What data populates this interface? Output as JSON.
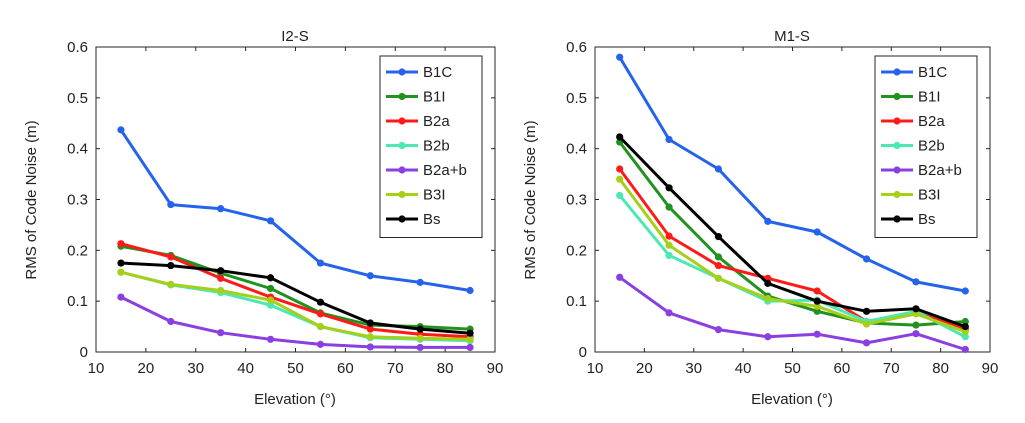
{
  "chart_data": [
    {
      "type": "line",
      "title": "I2-S",
      "xlabel": "Elevation (°)",
      "ylabel": "RMS of Code Noise (m)",
      "xlim": [
        10,
        90
      ],
      "ylim": [
        0,
        0.6
      ],
      "xticks": [
        10,
        20,
        30,
        40,
        50,
        60,
        70,
        80,
        90
      ],
      "yticks": [
        0,
        0.1,
        0.2,
        0.3,
        0.4,
        0.5,
        0.6
      ],
      "legend_position": "top-right",
      "x": [
        15,
        25,
        35,
        45,
        55,
        65,
        75,
        85
      ],
      "series": [
        {
          "name": "B1C",
          "color": "#2563eb",
          "values": [
            0.437,
            0.29,
            0.282,
            0.258,
            0.175,
            0.15,
            0.137,
            0.121
          ]
        },
        {
          "name": "B1I",
          "color": "#22921f",
          "values": [
            0.208,
            0.19,
            0.155,
            0.125,
            0.077,
            0.053,
            0.05,
            0.045
          ]
        },
        {
          "name": "B2a",
          "color": "#ff1a1a",
          "values": [
            0.213,
            0.187,
            0.145,
            0.108,
            0.075,
            0.045,
            0.035,
            0.03
          ]
        },
        {
          "name": "B2b",
          "color": "#4be8b3",
          "values": [
            0.157,
            0.132,
            0.117,
            0.092,
            0.05,
            0.028,
            0.025,
            0.022
          ]
        },
        {
          "name": "B2a+b",
          "color": "#8b3fe0",
          "values": [
            0.108,
            0.06,
            0.038,
            0.025,
            0.015,
            0.01,
            0.009,
            0.009
          ]
        },
        {
          "name": "B3I",
          "color": "#a6cf1a",
          "values": [
            0.157,
            0.133,
            0.121,
            0.102,
            0.05,
            0.03,
            0.027,
            0.025
          ]
        },
        {
          "name": "Bs",
          "color": "#000000",
          "values": [
            0.175,
            0.17,
            0.16,
            0.146,
            0.098,
            0.057,
            0.045,
            0.037
          ]
        }
      ]
    },
    {
      "type": "line",
      "title": "M1-S",
      "xlabel": "Elevation (°)",
      "ylabel": "RMS of Code Noise (m)",
      "xlim": [
        10,
        90
      ],
      "ylim": [
        0,
        0.6
      ],
      "xticks": [
        10,
        20,
        30,
        40,
        50,
        60,
        70,
        80,
        90
      ],
      "yticks": [
        0,
        0.1,
        0.2,
        0.3,
        0.4,
        0.5,
        0.6
      ],
      "legend_position": "top-right",
      "x": [
        15,
        25,
        35,
        45,
        55,
        65,
        75,
        85
      ],
      "series": [
        {
          "name": "B1C",
          "color": "#2563eb",
          "values": [
            0.58,
            0.418,
            0.36,
            0.257,
            0.236,
            0.183,
            0.138,
            0.12
          ]
        },
        {
          "name": "B1I",
          "color": "#22921f",
          "values": [
            0.413,
            0.285,
            0.187,
            0.11,
            0.08,
            0.057,
            0.053,
            0.06
          ]
        },
        {
          "name": "B2a",
          "color": "#ff1a1a",
          "values": [
            0.36,
            0.228,
            0.17,
            0.145,
            0.12,
            0.06,
            0.078,
            0.045
          ]
        },
        {
          "name": "B2b",
          "color": "#4be8b3",
          "values": [
            0.308,
            0.19,
            0.145,
            0.1,
            0.102,
            0.06,
            0.08,
            0.03
          ]
        },
        {
          "name": "B2a+b",
          "color": "#8b3fe0",
          "values": [
            0.147,
            0.077,
            0.044,
            0.03,
            0.035,
            0.018,
            0.036,
            0.005
          ]
        },
        {
          "name": "B3I",
          "color": "#a6cf1a",
          "values": [
            0.34,
            0.21,
            0.145,
            0.105,
            0.09,
            0.055,
            0.075,
            0.04
          ]
        },
        {
          "name": "Bs",
          "color": "#000000",
          "values": [
            0.423,
            0.323,
            0.227,
            0.135,
            0.1,
            0.08,
            0.085,
            0.05
          ]
        }
      ]
    }
  ]
}
